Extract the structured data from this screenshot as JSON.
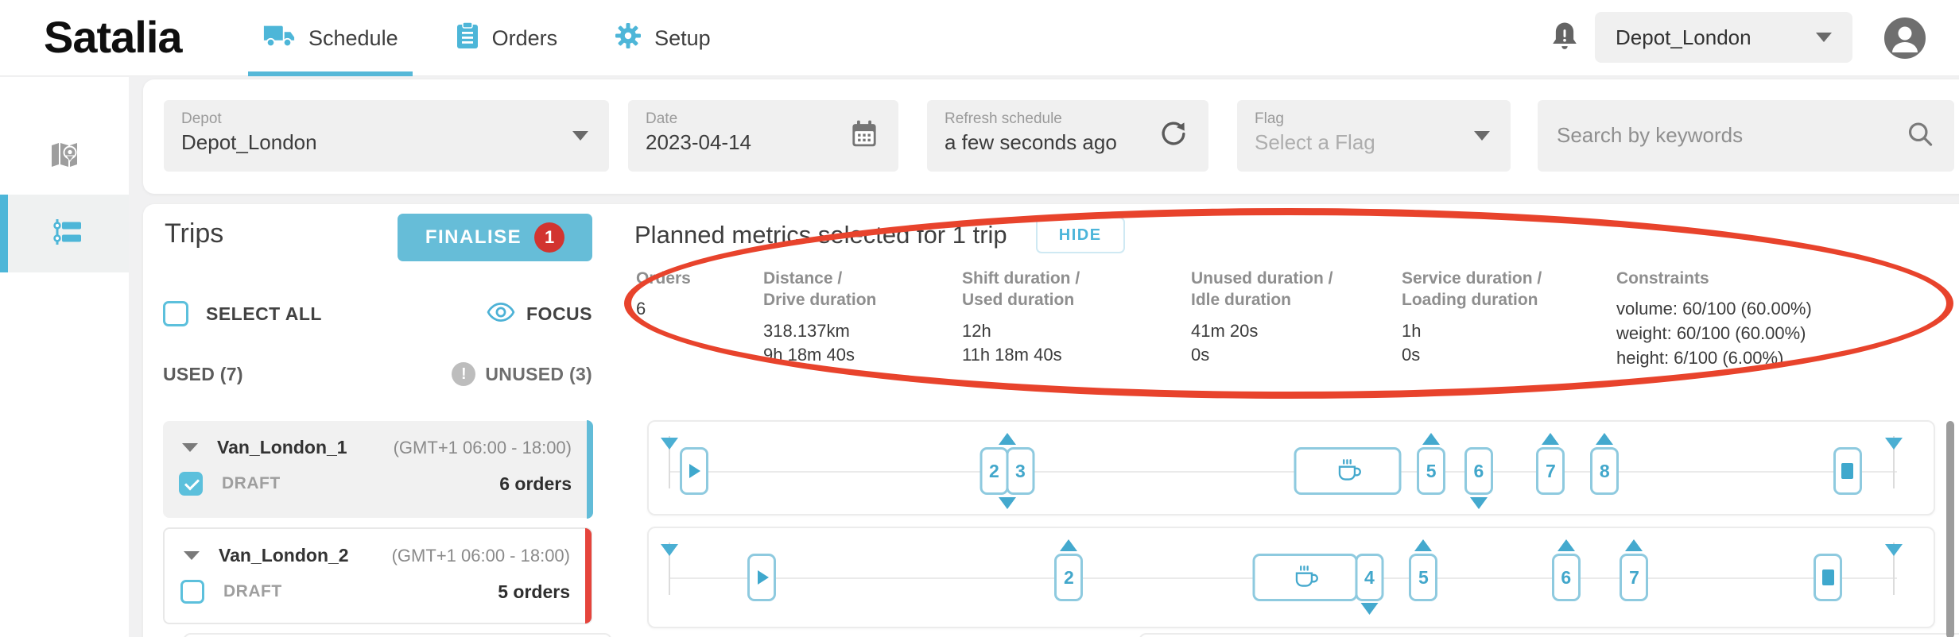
{
  "colors": {
    "accent": "#56b8d8",
    "finalise_bg": "#66bdd8",
    "badge_red": "#d23430",
    "annotation_red": "#e8432c"
  },
  "header": {
    "logo": "Satalia",
    "tabs": [
      {
        "label": "Schedule",
        "icon": "truck-icon",
        "active": true
      },
      {
        "label": "Orders",
        "icon": "clipboard-icon",
        "active": false
      },
      {
        "label": "Setup",
        "icon": "gear-icon",
        "active": false
      }
    ],
    "depot_selector": {
      "value": "Depot_London"
    }
  },
  "filters": {
    "depot": {
      "label": "Depot",
      "value": "Depot_London"
    },
    "date": {
      "label": "Date",
      "value": "2023-04-14"
    },
    "refresh": {
      "label": "Refresh schedule",
      "value": "a few seconds ago"
    },
    "flag": {
      "label": "Flag",
      "placeholder": "Select a Flag"
    },
    "search": {
      "placeholder": "Search by keywords"
    }
  },
  "trips_panel": {
    "title": "Trips",
    "finalise_label": "FINALISE",
    "finalise_badge": "1",
    "select_all_label": "SELECT ALL",
    "focus_label": "FOCUS",
    "used_label": "USED (7)",
    "unused_label": "UNUSED (3)",
    "trips": [
      {
        "name": "Van_London_1",
        "shift": "(GMT+1 06:00 - 18:00)",
        "status": "DRAFT",
        "orders": "6 orders",
        "checked": true,
        "bar_color": "#62bcd8"
      },
      {
        "name": "Van_London_2",
        "shift": "(GMT+1 06:00 - 18:00)",
        "status": "DRAFT",
        "orders": "5 orders",
        "checked": false,
        "bar_color": "#e5443c"
      }
    ]
  },
  "metrics_panel": {
    "title": "Planned metrics selected for 1 trip",
    "hide_label": "HIDE",
    "columns": [
      {
        "label_lines": [
          "Orders"
        ],
        "values": [
          "6"
        ]
      },
      {
        "label_lines": [
          "Distance /",
          "Drive duration"
        ],
        "values": [
          "318.137km",
          "9h 18m 40s"
        ]
      },
      {
        "label_lines": [
          "Shift duration /",
          "Used duration"
        ],
        "values": [
          "12h",
          "11h 18m 40s"
        ]
      },
      {
        "label_lines": [
          "Unused duration /",
          "Idle duration"
        ],
        "values": [
          "41m 20s",
          "0s"
        ]
      },
      {
        "label_lines": [
          "Service duration /",
          "Loading duration"
        ],
        "values": [
          "1h",
          "0s"
        ]
      },
      {
        "label_lines": [
          "Constraints"
        ],
        "values": [
          "volume: 60/100 (60.00%)",
          "weight: 60/100 (60.00%)",
          "height: 6/100 (6.00%)"
        ]
      }
    ]
  },
  "timelines": [
    {
      "markers": [
        {
          "type": "flag",
          "pos": 1.6
        },
        {
          "type": "play",
          "pos": 3.5
        },
        {
          "type": "group",
          "pos": 27.9,
          "items": [
            {
              "kind": "stop",
              "label": "2"
            },
            {
              "kind": "stop",
              "label": "3"
            }
          ],
          "arrows": [
            "up",
            "down"
          ]
        },
        {
          "type": "break",
          "pos": 54.4,
          "width": 135
        },
        {
          "type": "stop",
          "label": "5",
          "pos": 60.9,
          "arrow": "up"
        },
        {
          "type": "stop",
          "label": "6",
          "pos": 64.6,
          "arrow": "down"
        },
        {
          "type": "stop",
          "label": "7",
          "pos": 70.2,
          "arrow": "up"
        },
        {
          "type": "stop",
          "label": "8",
          "pos": 74.4,
          "arrow": "up"
        },
        {
          "type": "end",
          "pos": 93.3
        },
        {
          "type": "flag",
          "pos": 96.9
        }
      ]
    },
    {
      "markers": [
        {
          "type": "flag",
          "pos": 1.6
        },
        {
          "type": "play",
          "pos": 8.8
        },
        {
          "type": "stop",
          "label": "2",
          "pos": 32.7,
          "arrow": "up"
        },
        {
          "type": "group",
          "pos": 52.1,
          "items": [
            {
              "kind": "break",
              "width": 132
            },
            {
              "kind": "stop",
              "label": "4",
              "arrow": "down"
            }
          ]
        },
        {
          "type": "stop",
          "label": "5",
          "pos": 60.3,
          "arrow": "up"
        },
        {
          "type": "stop",
          "label": "6",
          "pos": 71.4,
          "arrow": "up"
        },
        {
          "type": "stop",
          "label": "7",
          "pos": 76.7,
          "arrow": "up"
        },
        {
          "type": "end",
          "pos": 91.8
        },
        {
          "type": "flag",
          "pos": 96.9
        }
      ]
    }
  ]
}
